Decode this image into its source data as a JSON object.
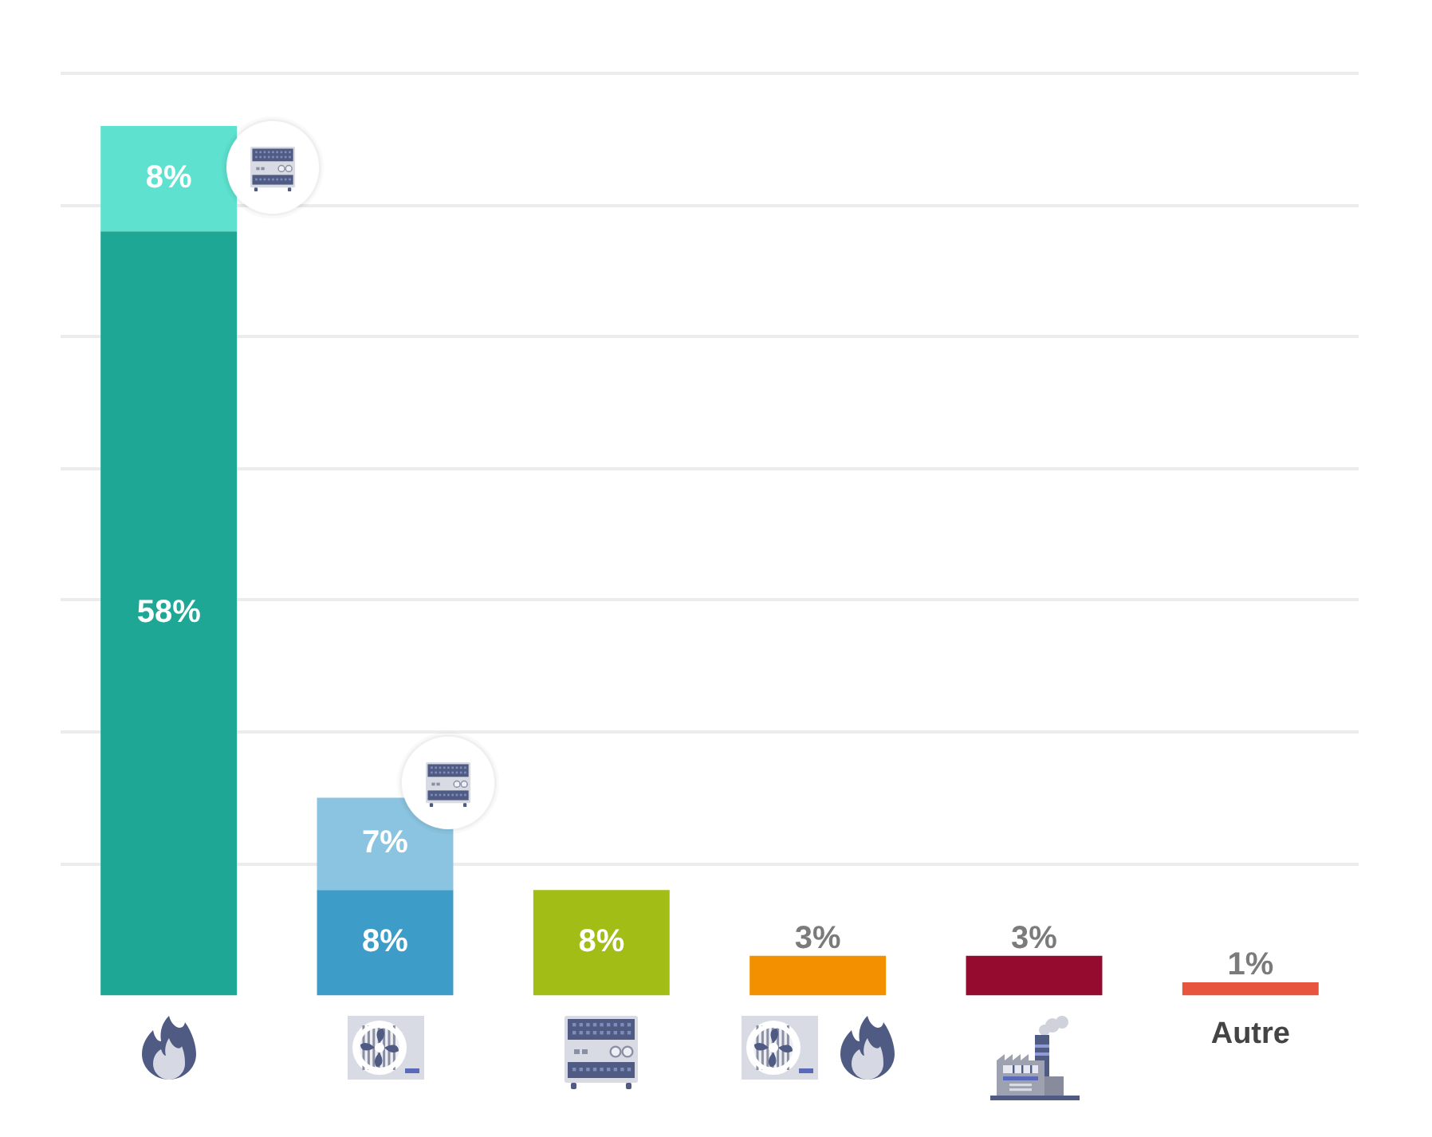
{
  "chart_data": {
    "type": "bar",
    "stacked": true,
    "categories": [
      null,
      null,
      null,
      null,
      null,
      "Autre"
    ],
    "series": [
      {
        "colors": [
          "#1fa795",
          "#3e9dc8",
          "#a3bd17",
          "#f39000",
          "#950a2f",
          "#e8553f"
        ],
        "values": [
          58,
          8,
          8,
          3,
          3,
          1
        ],
        "value_labels": [
          "58%",
          "8%",
          "8%",
          "3%",
          "3%",
          "1%"
        ]
      },
      {
        "colors": [
          "#5ee2cf",
          "#8bc4e0",
          null,
          null,
          null,
          null
        ],
        "values": [
          8,
          7,
          null,
          null,
          null,
          null
        ],
        "value_labels": [
          "8%",
          "7%",
          null,
          null,
          null,
          null
        ]
      }
    ],
    "ylim": [
      0,
      70
    ],
    "yticks": [
      {
        "value": 10,
        "label": null
      },
      {
        "value": 20,
        "label": null
      },
      {
        "value": 30,
        "label": null
      },
      {
        "value": 40,
        "label": null
      },
      {
        "value": 50,
        "label": null
      },
      {
        "value": 60,
        "label": null
      },
      {
        "value": 70,
        "label": null
      }
    ],
    "grid": "y",
    "tick_labels": "x"
  }
}
